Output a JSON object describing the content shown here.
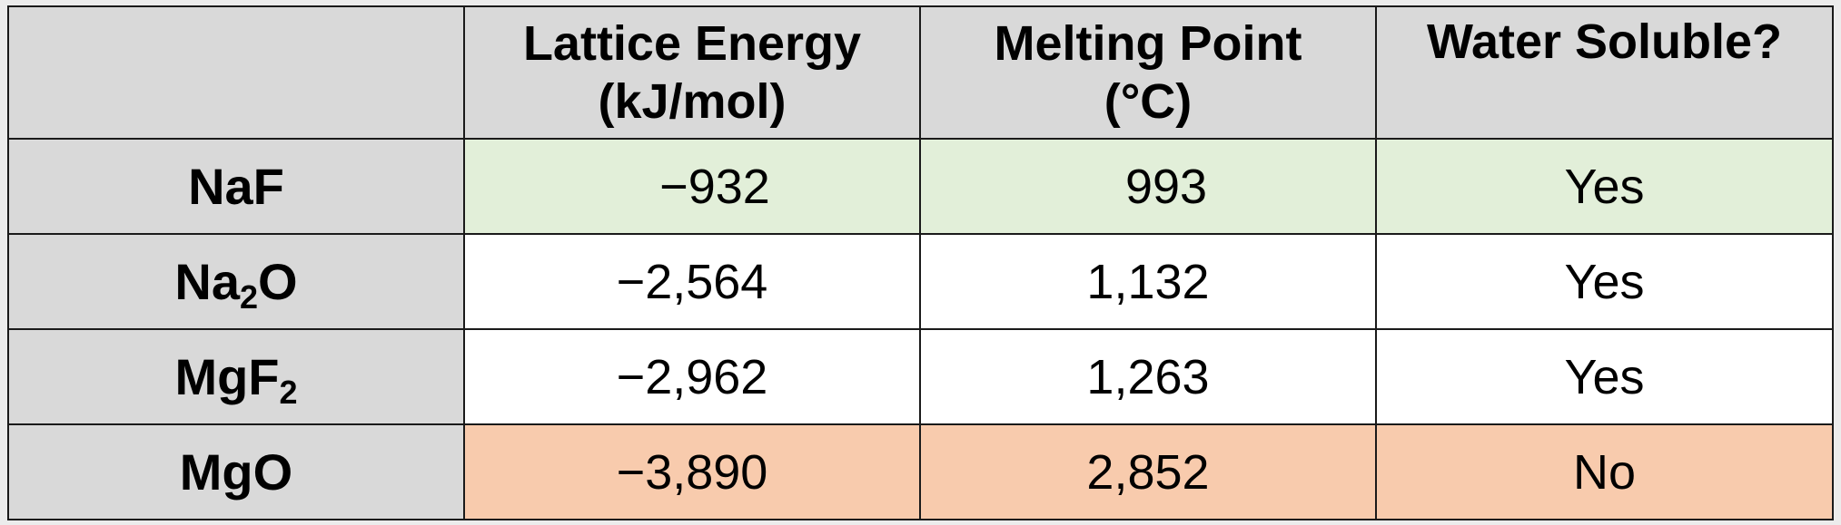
{
  "table": {
    "headers": [
      {
        "line1": "",
        "line2": ""
      },
      {
        "line1": "Lattice Energy",
        "line2": "(kJ/mol)"
      },
      {
        "line1": "Melting Point",
        "line2": "(°C)"
      },
      {
        "line1": "Water Soluble?",
        "line2": ""
      }
    ],
    "rows": [
      {
        "formula_base": "NaF",
        "formula_sub": "",
        "formula_tail": "",
        "lattice_energy": "−932",
        "melting_point": "993",
        "water_soluble": "Yes",
        "highlight": "green"
      },
      {
        "formula_base": "Na",
        "formula_sub": "2",
        "formula_tail": "O",
        "lattice_energy": "−2,564",
        "melting_point": "1,132",
        "water_soluble": "Yes",
        "highlight": "none"
      },
      {
        "formula_base": "MgF",
        "formula_sub": "2",
        "formula_tail": "",
        "lattice_energy": "−2,962",
        "melting_point": "1,263",
        "water_soluble": "Yes",
        "highlight": "none"
      },
      {
        "formula_base": "MgO",
        "formula_sub": "",
        "formula_tail": "",
        "lattice_energy": "−3,890",
        "melting_point": "2,852",
        "water_soluble": "No",
        "highlight": "orange"
      }
    ],
    "colors": {
      "header_fill": "#d9d9d9",
      "green_highlight": "#e2efd9",
      "orange_highlight": "#f8cbad",
      "border": "#1a1a1a"
    }
  }
}
